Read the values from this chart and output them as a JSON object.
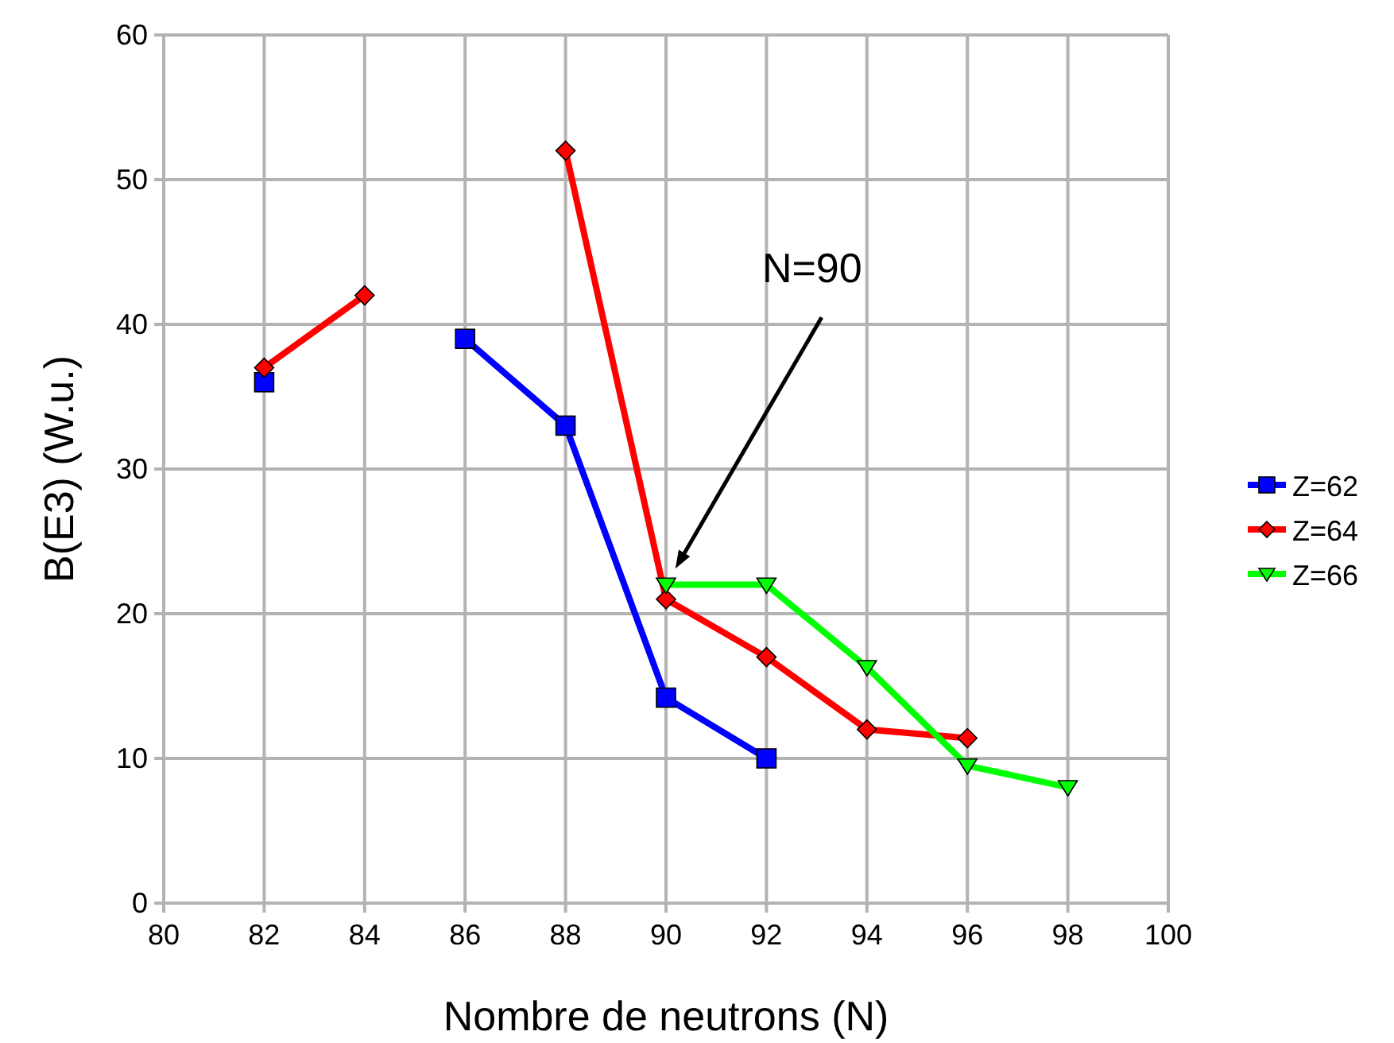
{
  "chart_data": {
    "type": "line",
    "xlabel": "Nombre de neutrons (N)",
    "ylabel": "B(E3) (W.u.)",
    "xlim": [
      80,
      100
    ],
    "xticks": [
      80,
      82,
      84,
      86,
      88,
      90,
      92,
      94,
      96,
      98,
      100
    ],
    "ylim": [
      0,
      60
    ],
    "yticks": [
      0,
      10,
      20,
      30,
      40,
      50,
      60
    ],
    "grid": true,
    "legend": "right",
    "series": [
      {
        "name": "Z=62",
        "color": "#0000ff",
        "marker": "square",
        "x": [
          82,
          84,
          86,
          88,
          90,
          92
        ],
        "values": [
          36,
          null,
          39,
          33,
          14.2,
          10
        ]
      },
      {
        "name": "Z=64",
        "color": "#ff0000",
        "marker": "diamond",
        "x": [
          82,
          84,
          86,
          88,
          90,
          92,
          94,
          96
        ],
        "values": [
          37,
          42,
          null,
          52,
          21,
          17,
          12,
          11.4
        ]
      },
      {
        "name": "Z=66",
        "color": "#00ff00",
        "marker": "triangle",
        "x": [
          90,
          92,
          94,
          96,
          98
        ],
        "values": [
          22,
          22,
          16.3,
          9.5,
          8
        ]
      }
    ],
    "annotations": [
      "N=90"
    ]
  }
}
